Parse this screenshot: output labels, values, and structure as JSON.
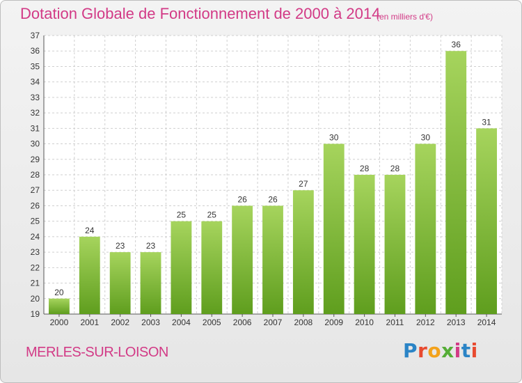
{
  "header": {
    "title": "Dotation Globale de Fonctionnement de 2000 à 2014",
    "unit": "(en milliers d'€)"
  },
  "footer": {
    "place": "MERLES-SUR-LOISON",
    "logo": "Proxiti"
  },
  "colors": {
    "title": "#d23a86",
    "bar_top": "#a6d45d",
    "bar_bottom": "#5f9e1e",
    "grid": "#cfcfcf"
  },
  "chart_data": {
    "type": "bar",
    "categories": [
      "2000",
      "2001",
      "2002",
      "2003",
      "2004",
      "2005",
      "2006",
      "2007",
      "2008",
      "2009",
      "2010",
      "2011",
      "2012",
      "2013",
      "2014"
    ],
    "values": [
      20,
      24,
      23,
      23,
      25,
      25,
      26,
      26,
      27,
      30,
      28,
      28,
      30,
      36,
      31
    ],
    "ylim": [
      19,
      37
    ],
    "yticks": [
      19,
      20,
      21,
      22,
      23,
      24,
      25,
      26,
      27,
      28,
      29,
      30,
      31,
      32,
      33,
      34,
      35,
      36,
      37
    ],
    "grid": true,
    "data_labels": true
  }
}
